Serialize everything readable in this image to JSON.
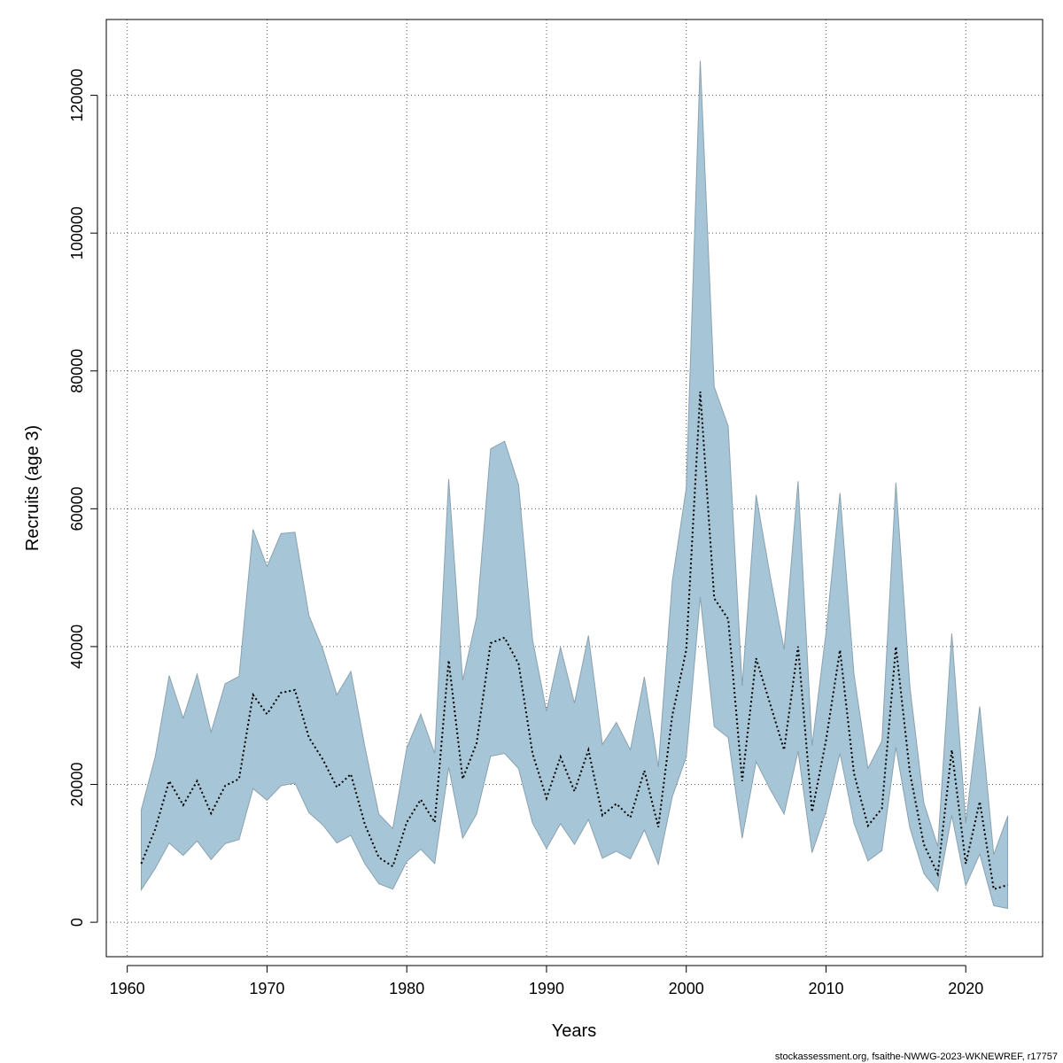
{
  "chart_data": {
    "type": "area",
    "xlabel": "Years",
    "ylabel": "Recruits (age 3)",
    "xlim": [
      1958.5,
      2025.5
    ],
    "ylim": [
      -5000,
      131000
    ],
    "x_ticks": [
      1960,
      1970,
      1980,
      1990,
      2000,
      2010,
      2020
    ],
    "y_ticks": [
      0,
      20000,
      40000,
      60000,
      80000,
      100000,
      120000
    ],
    "grid": true,
    "colors": {
      "band_fill": "#a6c5d6",
      "band_stroke": "#8aa2b0",
      "line": "#000000",
      "grid": "#555555"
    },
    "x": [
      1961,
      1962,
      1963,
      1964,
      1965,
      1966,
      1967,
      1968,
      1969,
      1970,
      1971,
      1972,
      1973,
      1974,
      1975,
      1976,
      1977,
      1978,
      1979,
      1980,
      1981,
      1982,
      1983,
      1984,
      1985,
      1986,
      1987,
      1988,
      1989,
      1990,
      1991,
      1992,
      1993,
      1994,
      1995,
      1996,
      1997,
      1998,
      1999,
      2000,
      2001,
      2002,
      2003,
      2004,
      2005,
      2006,
      2007,
      2008,
      2009,
      2010,
      2011,
      2012,
      2013,
      2014,
      2015,
      2016,
      2017,
      2018,
      2019,
      2020,
      2021,
      2022,
      2023
    ],
    "series": [
      {
        "values": [
          8500,
          13500,
          20500,
          17000,
          20500,
          15800,
          19800,
          20800,
          33000,
          30200,
          33300,
          33700,
          26800,
          23600,
          19600,
          21500,
          14200,
          9400,
          8100,
          14500,
          17800,
          14500,
          38000,
          20800,
          26000,
          40500,
          41300,
          37500,
          24500,
          18000,
          24000,
          19000,
          25000,
          15500,
          17200,
          15200,
          22000,
          13800,
          30000,
          39500,
          77000,
          47000,
          44000,
          20500,
          38300,
          31700,
          25000,
          40000,
          16000,
          26400,
          39500,
          21600,
          14000,
          16500,
          40000,
          21700,
          11300,
          7000,
          25000,
          8500,
          17500,
          4800,
          5400
        ]
      }
    ],
    "lower": [
      4700,
      7800,
      11500,
      9700,
      11800,
      9100,
      11400,
      12000,
      19400,
      17700,
      19800,
      20200,
      15900,
      14100,
      11500,
      12600,
      8500,
      5600,
      4800,
      8800,
      10600,
      8500,
      22500,
      12200,
      15700,
      24100,
      24500,
      22300,
      14400,
      10700,
      14300,
      11300,
      14900,
      9300,
      10300,
      9200,
      13400,
      8400,
      18200,
      24000,
      47200,
      28400,
      26800,
      12200,
      23300,
      19300,
      15700,
      24800,
      10100,
      16000,
      24500,
      14400,
      8900,
      10400,
      25400,
      13700,
      7100,
      4500,
      15500,
      5300,
      9900,
      2400,
      2000
    ],
    "upper": [
      16300,
      24000,
      35800,
      29600,
      36000,
      27600,
      34600,
      35700,
      57000,
      51600,
      56400,
      56600,
      44500,
      39600,
      33000,
      36400,
      25500,
      15700,
      13600,
      25300,
      30200,
      24500,
      64300,
      35100,
      44300,
      68700,
      69800,
      63500,
      41000,
      30600,
      39900,
      31800,
      41600,
      25800,
      29000,
      25000,
      35600,
      22500,
      49500,
      63000,
      125000,
      77700,
      72000,
      34300,
      62000,
      50300,
      39600,
      64000,
      25600,
      42000,
      62300,
      36000,
      22300,
      26300,
      63800,
      34200,
      17300,
      11000,
      41900,
      14400,
      31300,
      9800,
      15400
    ]
  },
  "credit": "stockassessment.org, fsaithe-NWWG-2023-WKNEWREF, r17757"
}
